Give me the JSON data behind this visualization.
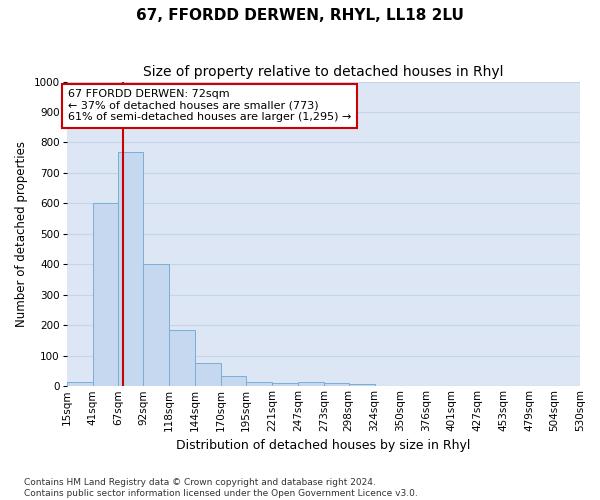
{
  "title": "67, FFORDD DERWEN, RHYL, LL18 2LU",
  "subtitle": "Size of property relative to detached houses in Rhyl",
  "xlabel": "Distribution of detached houses by size in Rhyl",
  "ylabel": "Number of detached properties",
  "bin_edges": [
    15,
    41,
    67,
    92,
    118,
    144,
    170,
    195,
    221,
    247,
    273,
    298,
    324,
    350,
    376,
    401,
    427,
    453,
    479,
    504,
    530
  ],
  "bar_heights": [
    15,
    600,
    770,
    400,
    185,
    75,
    35,
    15,
    10,
    13,
    10,
    7,
    0,
    0,
    0,
    0,
    0,
    0,
    0,
    0
  ],
  "bar_color": "#c5d8ef",
  "bar_edgecolor": "#7aaed4",
  "property_size": 72,
  "vline_color": "#cc0000",
  "annotation_text": "67 FFORDD DERWEN: 72sqm\n← 37% of detached houses are smaller (773)\n61% of semi-detached houses are larger (1,295) →",
  "annotation_box_color": "#ffffff",
  "annotation_box_edgecolor": "#cc0000",
  "ylim": [
    0,
    1000
  ],
  "yticks": [
    0,
    100,
    200,
    300,
    400,
    500,
    600,
    700,
    800,
    900,
    1000
  ],
  "grid_color": "#c8d4e8",
  "background_color": "#dce6f5",
  "fig_background": "#ffffff",
  "footer_text": "Contains HM Land Registry data © Crown copyright and database right 2024.\nContains public sector information licensed under the Open Government Licence v3.0.",
  "title_fontsize": 11,
  "subtitle_fontsize": 10,
  "axis_label_fontsize": 8.5,
  "tick_fontsize": 7.5,
  "annotation_fontsize": 8,
  "footer_fontsize": 6.5
}
